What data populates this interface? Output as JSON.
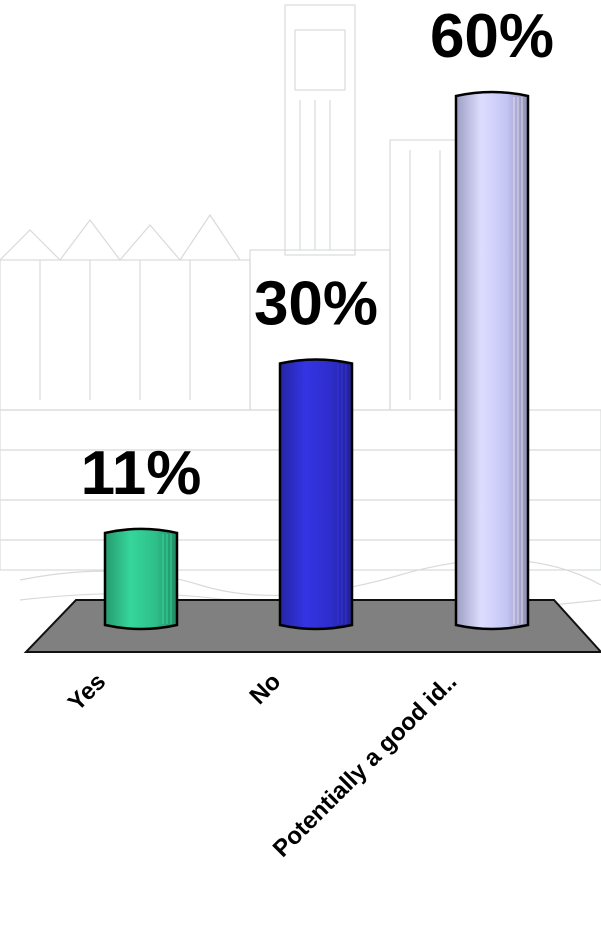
{
  "chart_data": {
    "type": "bar",
    "categories": [
      "Yes",
      "No",
      "Potentially a good id.."
    ],
    "values": [
      11,
      30,
      60
    ],
    "value_labels": [
      "11%",
      "30%",
      "60%"
    ],
    "unit": "%",
    "ylim": [
      0,
      60
    ],
    "colors": [
      "#2fbf8a",
      "#2e2ecc",
      "#c5c5f5"
    ],
    "floor_color": "#808080",
    "grid": false,
    "legend": "none",
    "title": "",
    "xlabel": "",
    "ylabel": ""
  }
}
